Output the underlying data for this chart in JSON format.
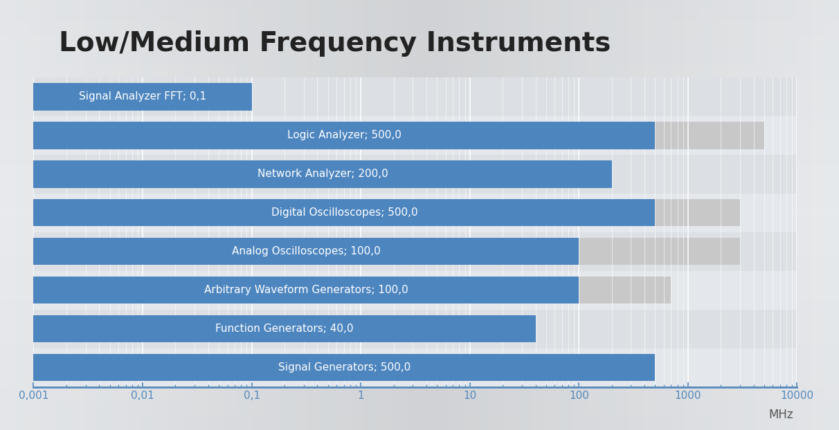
{
  "title": "Low/Medium Frequency Instruments",
  "title_fontsize": 28,
  "xscale": "log",
  "xlim": [
    0.001,
    10000
  ],
  "xticks": [
    0.001,
    0.01,
    0.1,
    1,
    10,
    100,
    1000,
    10000
  ],
  "xtick_labels": [
    "0,001",
    "0,01",
    "0,1",
    "1",
    "10",
    "100",
    "1000",
    "10000"
  ],
  "bg_outer": "#b0b8c0",
  "bg_inner": "#e0e4e8",
  "plot_bg_color": "#e4e8ec",
  "bar_color": "#4d85bf",
  "gray_color": "#c8c8c8",
  "row_bg_alt": "#d0d4d8",
  "instruments": [
    {
      "label": "Signal Analyzer FFT; 0,1",
      "blue": 0.1,
      "gray": null
    },
    {
      "label": "Logic Analyzer; 500,0",
      "blue": 500.0,
      "gray": 5000.0
    },
    {
      "label": "Network Analyzer; 200,0",
      "blue": 200.0,
      "gray": null
    },
    {
      "label": "Digital Oscilloscopes; 500,0",
      "blue": 500.0,
      "gray": 3000.0
    },
    {
      "label": "Analog Oscilloscopes; 100,0",
      "blue": 100.0,
      "gray": 3000.0
    },
    {
      "label": "Arbitrary Waveform Generators; 100,0",
      "blue": 100.0,
      "gray": 700.0
    },
    {
      "label": "Function Generators; 40,0",
      "blue": 40.0,
      "gray": null
    },
    {
      "label": "Signal Generators; 500,0",
      "blue": 500.0,
      "gray": null
    }
  ],
  "bar_height": 0.7,
  "text_color_white": "#ffffff",
  "text_fontsize": 11,
  "axis_line_color": "#5588bb",
  "tick_color": "#5588bb",
  "mhz_fontsize": 12,
  "xlabel_color": "#555555"
}
